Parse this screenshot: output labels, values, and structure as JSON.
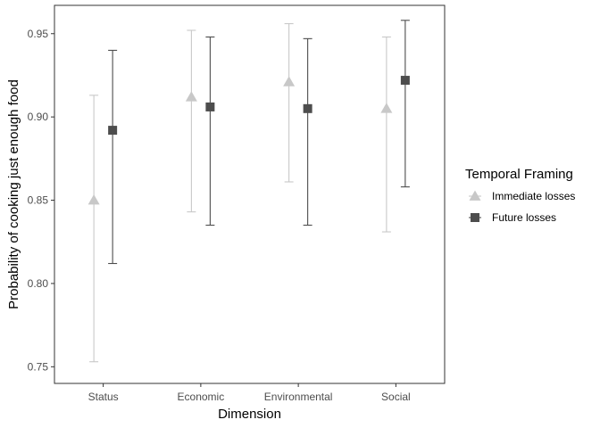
{
  "chart_data": {
    "type": "scatter",
    "xlabel": "Dimension",
    "ylabel": "Probability of cooking just enough food",
    "categories": [
      "Status",
      "Economic",
      "Environmental",
      "Social"
    ],
    "ylim": [
      0.74,
      0.967
    ],
    "yticks": [
      "0.75",
      "0.80",
      "0.85",
      "0.90",
      "0.95"
    ],
    "grid": false,
    "legend_position": "right",
    "legend_title": "Temporal Framing",
    "series": [
      {
        "name": "Immediate losses",
        "marker": "triangle",
        "color": "#c8c8c8",
        "values": [
          0.85,
          0.912,
          0.921,
          0.905
        ],
        "lower": [
          0.753,
          0.843,
          0.861,
          0.831
        ],
        "upper": [
          0.913,
          0.952,
          0.956,
          0.948
        ]
      },
      {
        "name": "Future losses",
        "marker": "square",
        "color": "#4d4d4d",
        "values": [
          0.892,
          0.906,
          0.905,
          0.922
        ],
        "lower": [
          0.812,
          0.835,
          0.835,
          0.858
        ],
        "upper": [
          0.94,
          0.948,
          0.947,
          0.958
        ]
      }
    ]
  }
}
